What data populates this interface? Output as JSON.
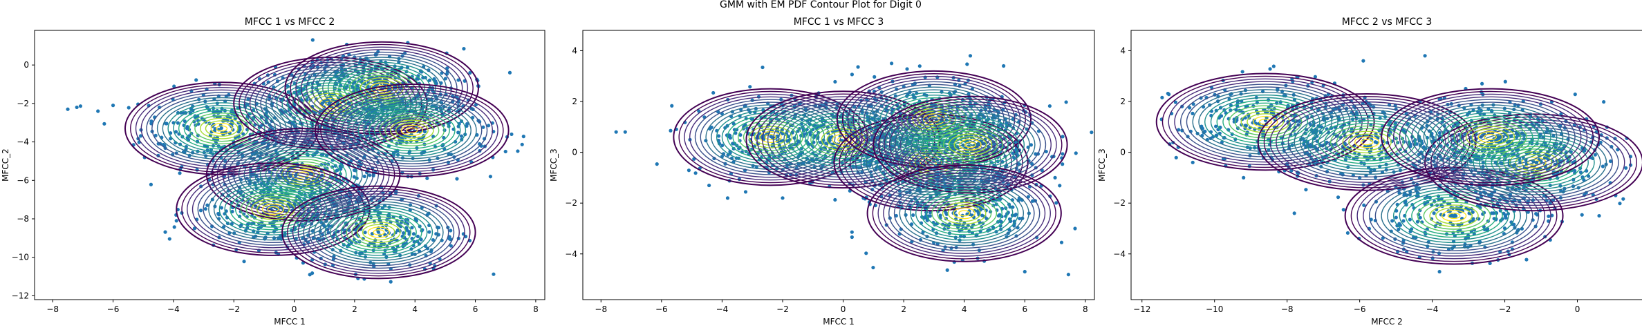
{
  "figure": {
    "suptitle": "GMM with EM PDF Contour Plot for Digit 0"
  },
  "colors": {
    "points": "#1f77b4",
    "viridis": [
      "#440154",
      "#472c7a",
      "#3b518b",
      "#2c718e",
      "#21908d",
      "#27ad81",
      "#5cc863",
      "#aadc32",
      "#fde725"
    ]
  },
  "chart_data": [
    {
      "type": "scatter",
      "title": "MFCC 1 vs MFCC 2",
      "xlabel": "MFCC 1",
      "ylabel": "MFCC_2",
      "xlim": [
        -8.6,
        8.3
      ],
      "ylim": [
        -12.2,
        1.8
      ],
      "xticks": [
        -8,
        -6,
        -4,
        -2,
        0,
        2,
        4,
        6,
        8
      ],
      "yticks": [
        -12,
        -10,
        -8,
        -6,
        -4,
        -2,
        0
      ],
      "tick_labels_x": [
        "−8",
        "−6",
        "−4",
        "−2",
        "0",
        "2",
        "4",
        "6",
        "8"
      ],
      "tick_labels_y": [
        "−12",
        "−10",
        "−8",
        "−6",
        "−4",
        "−2",
        "0"
      ],
      "components": [
        {
          "mean": [
            -2.4,
            -3.3
          ],
          "sd": [
            3.2,
            2.4
          ]
        },
        {
          "mean": [
            1.2,
            -2.0
          ],
          "sd": [
            3.2,
            2.4
          ]
        },
        {
          "mean": [
            2.9,
            -1.2
          ],
          "sd": [
            3.2,
            2.4
          ]
        },
        {
          "mean": [
            0.3,
            -5.7
          ],
          "sd": [
            3.2,
            2.4
          ]
        },
        {
          "mean": [
            3.9,
            -3.4
          ],
          "sd": [
            3.2,
            2.4
          ]
        },
        {
          "mean": [
            -0.7,
            -7.5
          ],
          "sd": [
            3.2,
            2.4
          ]
        },
        {
          "mean": [
            2.8,
            -8.7
          ],
          "sd": [
            3.2,
            2.4
          ]
        }
      ],
      "points_sample": [
        [
          -7.5,
          -2.3
        ],
        [
          -7.2,
          -2.2
        ],
        [
          -6.5,
          -2.4
        ],
        [
          -6.0,
          -2.1
        ],
        [
          6.5,
          -5.8
        ],
        [
          7.0,
          -4.5
        ],
        [
          4.5,
          -10.3
        ],
        [
          3.2,
          -10.6
        ],
        [
          -3.9,
          -8.1
        ],
        [
          7.2,
          -3.6
        ]
      ]
    },
    {
      "type": "scatter",
      "title": "MFCC 1 vs MFCC 3",
      "xlabel": "MFCC 1",
      "ylabel": "MFCC_3",
      "xlim": [
        -8.6,
        8.3
      ],
      "ylim": [
        -5.8,
        4.8
      ],
      "xticks": [
        -8,
        -6,
        -4,
        -2,
        0,
        2,
        4,
        6,
        8
      ],
      "yticks": [
        -4,
        -2,
        0,
        2,
        4
      ],
      "tick_labels_x": [
        "−8",
        "−6",
        "−4",
        "−2",
        "0",
        "2",
        "4",
        "6",
        "8"
      ],
      "tick_labels_y": [
        "−4",
        "−2",
        "0",
        "2",
        "4"
      ],
      "components": [
        {
          "mean": [
            -2.4,
            0.6
          ],
          "sd": [
            3.2,
            1.9
          ]
        },
        {
          "mean": [
            0.0,
            0.5
          ],
          "sd": [
            3.2,
            1.9
          ]
        },
        {
          "mean": [
            2.9,
            -0.4
          ],
          "sd": [
            3.2,
            1.9
          ]
        },
        {
          "mean": [
            3.0,
            1.3
          ],
          "sd": [
            3.2,
            1.9
          ]
        },
        {
          "mean": [
            4.2,
            0.3
          ],
          "sd": [
            3.2,
            1.9
          ]
        },
        {
          "mean": [
            4.0,
            -2.4
          ],
          "sd": [
            3.2,
            1.9
          ]
        }
      ],
      "points_sample": [
        [
          -7.5,
          0.8
        ],
        [
          -7.2,
          0.8
        ],
        [
          6.0,
          -4.7
        ],
        [
          4.2,
          3.8
        ],
        [
          1.6,
          3.5
        ],
        [
          -2.0,
          -1.8
        ],
        [
          7.0,
          -1.0
        ],
        [
          5.3,
          3.4
        ]
      ]
    },
    {
      "type": "scatter",
      "title": "MFCC 2 vs MFCC 3",
      "xlabel": "MFCC 2",
      "ylabel": "MFCC_3",
      "xlim": [
        -12.3,
        1.8
      ],
      "ylim": [
        -5.8,
        4.8
      ],
      "xticks": [
        -12,
        -10,
        -8,
        -6,
        -4,
        -2,
        0
      ],
      "yticks": [
        -4,
        -2,
        0,
        2,
        4
      ],
      "tick_labels_x": [
        "−12",
        "−10",
        "−8",
        "−6",
        "−4",
        "−2",
        "0"
      ],
      "tick_labels_y": [
        "−4",
        "−2",
        "0",
        "2",
        "4"
      ],
      "components": [
        {
          "mean": [
            -8.6,
            1.2
          ],
          "sd": [
            3.0,
            1.9
          ]
        },
        {
          "mean": [
            -5.8,
            0.4
          ],
          "sd": [
            3.0,
            1.9
          ]
        },
        {
          "mean": [
            -3.4,
            -2.5
          ],
          "sd": [
            3.0,
            1.9
          ]
        },
        {
          "mean": [
            -1.2,
            -0.4
          ],
          "sd": [
            3.0,
            1.9
          ]
        },
        {
          "mean": [
            -2.4,
            0.6
          ],
          "sd": [
            3.0,
            1.9
          ]
        }
      ],
      "points_sample": [
        [
          -11.0,
          0.2
        ],
        [
          -10.6,
          -0.4
        ],
        [
          -4.2,
          3.8
        ],
        [
          -3.8,
          -4.7
        ],
        [
          0.6,
          -2.5
        ],
        [
          -5.9,
          3.6
        ],
        [
          -7.8,
          -2.4
        ],
        [
          -9.2,
          -1.0
        ]
      ]
    }
  ]
}
